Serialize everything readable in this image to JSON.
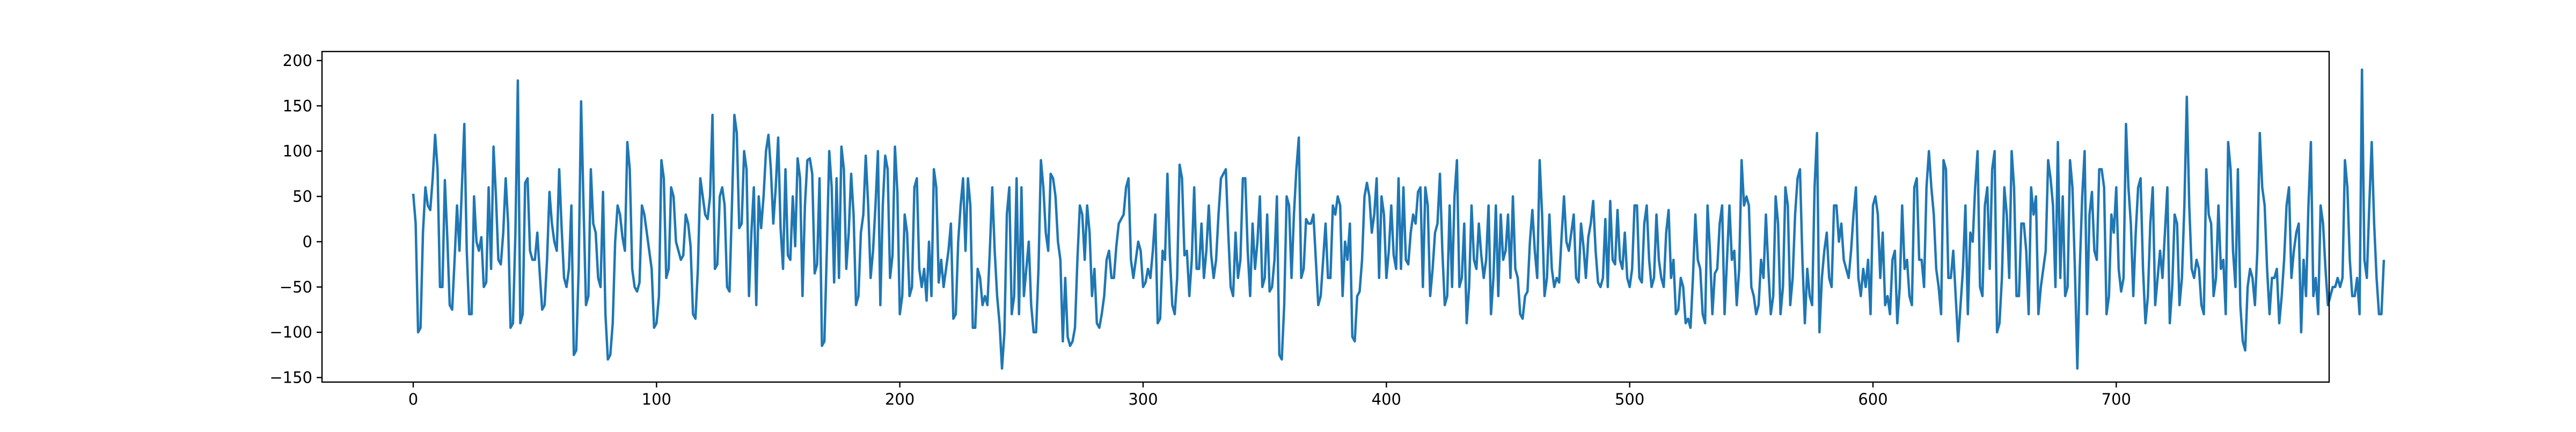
{
  "chart_data": {
    "type": "line",
    "title": "",
    "xlabel": "",
    "ylabel": "",
    "xlim": [
      -37.5,
      787.5
    ],
    "ylim": [
      -155,
      210
    ],
    "x_ticks": [
      0,
      100,
      200,
      300,
      400,
      500,
      600,
      700
    ],
    "y_ticks": [
      -150,
      -100,
      -50,
      0,
      50,
      100,
      150,
      200
    ],
    "grid": false,
    "legend": "none",
    "series": [
      {
        "color": "#1f77b4",
        "x_start": 0,
        "x_step": 1,
        "values": [
          53,
          20,
          -100,
          -95,
          10,
          60,
          40,
          35,
          70,
          118,
          80,
          -50,
          -50,
          68,
          5,
          -70,
          -75,
          -20,
          40,
          -10,
          60,
          130,
          -10,
          -80,
          -80,
          50,
          0,
          -10,
          5,
          -50,
          -45,
          60,
          -30,
          105,
          50,
          -20,
          -25,
          10,
          70,
          20,
          -95,
          -90,
          10,
          178,
          -90,
          -80,
          65,
          70,
          -10,
          -20,
          -20,
          10,
          -35,
          -75,
          -70,
          -20,
          55,
          20,
          0,
          -10,
          80,
          15,
          -40,
          -50,
          -30,
          40,
          -125,
          -120,
          -30,
          155,
          40,
          -70,
          -60,
          80,
          20,
          10,
          -40,
          -50,
          55,
          -80,
          -130,
          -125,
          -90,
          0,
          40,
          30,
          5,
          -10,
          110,
          80,
          -30,
          -50,
          -55,
          -45,
          40,
          30,
          10,
          -10,
          -30,
          -95,
          -90,
          -60,
          90,
          70,
          -40,
          -30,
          60,
          50,
          0,
          -10,
          -20,
          -15,
          30,
          20,
          -5,
          -80,
          -85,
          -30,
          70,
          50,
          30,
          25,
          50,
          140,
          -30,
          -25,
          50,
          60,
          40,
          -50,
          -55,
          40,
          140,
          120,
          15,
          20,
          100,
          80,
          -60,
          10,
          60,
          -70,
          50,
          15,
          50,
          100,
          118,
          80,
          20,
          60,
          115,
          15,
          -30,
          80,
          -15,
          -20,
          50,
          -5,
          92,
          70,
          -60,
          40,
          90,
          92,
          75,
          -35,
          -25,
          70,
          -115,
          -110,
          -10,
          100,
          60,
          -45,
          70,
          -40,
          105,
          80,
          -30,
          10,
          75,
          30,
          -70,
          -60,
          10,
          30,
          95,
          40,
          -40,
          -10,
          40,
          100,
          -70,
          40,
          95,
          80,
          -40,
          -15,
          105,
          55,
          -80,
          -60,
          30,
          10,
          -60,
          -50,
          60,
          70,
          -30,
          -50,
          -30,
          -65,
          0,
          -60,
          80,
          60,
          -45,
          -20,
          -50,
          -30,
          -10,
          20,
          -85,
          -80,
          0,
          40,
          70,
          -10,
          70,
          40,
          -95,
          -95,
          -30,
          -40,
          -70,
          -60,
          -70,
          -10,
          60,
          -10,
          -60,
          -90,
          -140,
          -100,
          30,
          60,
          -80,
          -60,
          70,
          -80,
          60,
          -60,
          -30,
          0,
          -70,
          -100,
          -100,
          -30,
          90,
          60,
          10,
          -10,
          75,
          70,
          50,
          0,
          -20,
          -110,
          -40,
          -105,
          -115,
          -110,
          -95,
          -20,
          40,
          30,
          -20,
          40,
          10,
          -60,
          -30,
          -90,
          -95,
          -80,
          -60,
          -20,
          -10,
          -40,
          -40,
          -5,
          20,
          25,
          30,
          60,
          70,
          -20,
          -40,
          -20,
          0,
          -10,
          -50,
          -45,
          -30,
          -40,
          -10,
          30,
          -90,
          -85,
          -10,
          -20,
          75,
          -15,
          -70,
          -80,
          -40,
          85,
          70,
          -15,
          -10,
          -60,
          -20,
          60,
          -30,
          -30,
          20,
          -40,
          -10,
          40,
          -15,
          -40,
          -20,
          30,
          70,
          75,
          80,
          10,
          -50,
          -60,
          10,
          -40,
          -20,
          70,
          70,
          -10,
          -60,
          20,
          -30,
          0,
          50,
          -50,
          -40,
          30,
          -55,
          -50,
          -20,
          50,
          -125,
          -130,
          -70,
          50,
          40,
          -40,
          30,
          80,
          115,
          -40,
          -30,
          25,
          20,
          20,
          30,
          -20,
          -70,
          -60,
          -20,
          20,
          -40,
          -40,
          40,
          30,
          50,
          40,
          -60,
          0,
          -20,
          20,
          -105,
          -110,
          -60,
          -55,
          -20,
          50,
          65,
          50,
          10,
          30,
          70,
          -40,
          50,
          30,
          -40,
          -10,
          40,
          -15,
          -30,
          70,
          -30,
          60,
          -20,
          -25,
          10,
          30,
          20,
          55,
          60,
          -50,
          60,
          40,
          -60,
          -30,
          10,
          20,
          75,
          -10,
          -70,
          -60,
          40,
          -50,
          50,
          90,
          -50,
          -40,
          20,
          -90,
          -50,
          40,
          -20,
          -30,
          20,
          -15,
          -40,
          -20,
          40,
          -80,
          -40,
          40,
          -60,
          30,
          -20,
          -10,
          30,
          -40,
          50,
          -30,
          -40,
          -80,
          -85,
          -60,
          -55,
          0,
          35,
          -10,
          -40,
          90,
          30,
          -60,
          -40,
          30,
          -30,
          -50,
          -40,
          -45,
          5,
          50,
          0,
          -10,
          10,
          30,
          -40,
          -45,
          20,
          -5,
          -40,
          5,
          20,
          45,
          -10,
          -45,
          -50,
          -40,
          25,
          -50,
          45,
          -20,
          -25,
          35,
          -20,
          -30,
          10,
          -40,
          -50,
          -30,
          40,
          40,
          -40,
          -45,
          20,
          40,
          -20,
          -50,
          -40,
          30,
          -20,
          -40,
          -50,
          10,
          35,
          -40,
          -20,
          -80,
          -75,
          -40,
          -50,
          -90,
          -85,
          -95,
          -40,
          30,
          -20,
          -30,
          -80,
          -90,
          40,
          -10,
          -80,
          -35,
          -30,
          20,
          40,
          -80,
          -20,
          40,
          -20,
          -10,
          -70,
          -30,
          90,
          40,
          50,
          40,
          -50,
          -60,
          -80,
          -70,
          -20,
          -40,
          30,
          -30,
          -80,
          -60,
          50,
          20,
          -80,
          -50,
          60,
          40,
          -70,
          -40,
          30,
          70,
          80,
          -20,
          -90,
          -30,
          -60,
          -70,
          60,
          120,
          -100,
          -40,
          -10,
          10,
          -40,
          -50,
          40,
          40,
          0,
          20,
          -20,
          -30,
          -40,
          -10,
          30,
          60,
          -40,
          -60,
          -30,
          -50,
          -20,
          -80,
          40,
          50,
          30,
          -40,
          10,
          -70,
          -60,
          -80,
          -20,
          -10,
          -90,
          -50,
          40,
          -30,
          -20,
          -60,
          -70,
          60,
          70,
          -20,
          -20,
          -50,
          60,
          100,
          60,
          30,
          -30,
          -50,
          -80,
          90,
          80,
          -40,
          -40,
          -10,
          -60,
          -110,
          -70,
          -30,
          40,
          -80,
          10,
          0,
          60,
          100,
          -50,
          -60,
          40,
          60,
          -30,
          80,
          100,
          -100,
          -90,
          -40,
          60,
          30,
          -40,
          100,
          60,
          -60,
          -60,
          20,
          20,
          -10,
          -80,
          60,
          30,
          50,
          -80,
          -50,
          -30,
          -10,
          90,
          70,
          40,
          -50,
          110,
          -40,
          50,
          -60,
          -50,
          90,
          60,
          -30,
          -140,
          -30,
          50,
          100,
          -80,
          30,
          55,
          -10,
          -20,
          80,
          80,
          60,
          -80,
          -60,
          30,
          10,
          60,
          -30,
          -55,
          -40,
          130,
          60,
          20,
          -60,
          10,
          60,
          70,
          -30,
          -90,
          -60,
          20,
          60,
          -70,
          -40,
          -10,
          -40,
          10,
          60,
          -90,
          -50,
          30,
          20,
          -70,
          -40,
          40,
          160,
          40,
          -30,
          -40,
          -20,
          -30,
          -70,
          -80,
          80,
          30,
          20,
          -60,
          -40,
          40,
          -30,
          -20,
          -80,
          110,
          80,
          -10,
          -50,
          80,
          -70,
          -110,
          -120,
          -50,
          -30,
          -40,
          -70,
          -10,
          120,
          60,
          40,
          -30,
          -80,
          -40,
          -40,
          -30,
          -90,
          -60,
          -20,
          40,
          60,
          -40,
          -10,
          10,
          20,
          -100,
          -20,
          -60,
          40,
          110,
          -60,
          -40,
          -80,
          40,
          20,
          -30,
          -70,
          -60,
          -50,
          -50,
          -40,
          -50,
          -40,
          90,
          60,
          -20,
          -60,
          -60,
          -40,
          -80,
          190,
          -20,
          -40,
          40,
          110,
          20,
          -40,
          -80,
          -80,
          -20
        ]
      }
    ]
  }
}
